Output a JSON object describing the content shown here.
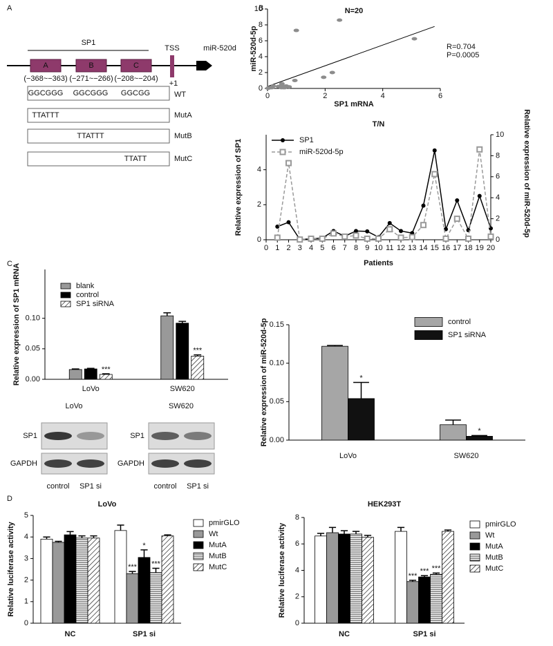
{
  "panel_labels": [
    "A",
    "B",
    "C",
    "D"
  ],
  "diagram": {
    "bracket_label": "SP1",
    "sites": [
      {
        "name": "A",
        "range": "(−368~−363)"
      },
      {
        "name": "B",
        "range": "(−271~−266)"
      },
      {
        "name": "C",
        "range": "(−208~−204)"
      }
    ],
    "tss": "TSS",
    "plus_one": "+1",
    "gene": "miR-520d",
    "constructs": [
      {
        "name": "WT",
        "sequences": [
          "GGCGGG",
          "GGCGGG",
          "GGCGG"
        ]
      },
      {
        "name": "MutA",
        "sequences": [
          "TTATTT",
          null,
          null
        ]
      },
      {
        "name": "MutB",
        "sequences": [
          null,
          "TTATTT",
          null
        ]
      },
      {
        "name": "MutC",
        "sequences": [
          null,
          null,
          "TTATT"
        ]
      }
    ]
  },
  "blots": [
    {
      "title": "LoVo",
      "rows": [
        "SP1",
        "GAPDH"
      ],
      "lanes": [
        "control",
        "SP1 si"
      ]
    },
    {
      "title": "SW620",
      "rows": [
        "SP1",
        "GAPDH"
      ],
      "lanes": [
        "control",
        "SP1 si"
      ]
    }
  ],
  "chart_data": [
    {
      "type": "scatter",
      "title": "N=20",
      "x_label": "SP1 mRNA",
      "y_label": "miR-520d-5p",
      "x": [
        0.75,
        1.0,
        0.02,
        0.05,
        0.1,
        0.5,
        0.2,
        0.5,
        0.48,
        0.15,
        0.95,
        0.5,
        0.38,
        1.95,
        5.1,
        0.6,
        2.25,
        0.55,
        2.5,
        0.65
      ],
      "values": [
        0.2,
        7.3,
        0.02,
        0.1,
        0.1,
        0.6,
        0.3,
        0.4,
        0.1,
        0.1,
        1.0,
        0.2,
        0.25,
        1.4,
        6.25,
        0.1,
        2.0,
        0.1,
        8.6,
        0.3
      ],
      "color": "#8c8c8c",
      "trendline": {
        "x": [
          0,
          5.8
        ],
        "y": [
          0.25,
          7.8
        ]
      },
      "annotations": [
        "R=0.704",
        "P=0.0005"
      ],
      "xlim": [
        0,
        6
      ],
      "xticks": [
        0,
        2,
        4,
        6
      ],
      "ylim": [
        0,
        10
      ],
      "yticks": [
        0,
        2,
        4,
        6,
        8,
        10
      ]
    },
    {
      "type": "line",
      "title": "T/N",
      "x_label": "Patients",
      "y_label": "Relative expression of SP1",
      "y2_label": "Relative expression of miR-520d-5p",
      "x": [
        1,
        2,
        3,
        4,
        5,
        6,
        7,
        8,
        9,
        10,
        11,
        12,
        13,
        14,
        15,
        16,
        17,
        18,
        19,
        20
      ],
      "series": [
        {
          "name": "SP1",
          "color": "#000000",
          "marker": "circle",
          "dashed": false,
          "values": [
            0.75,
            1.0,
            0.02,
            0.05,
            0.1,
            0.5,
            0.2,
            0.5,
            0.48,
            0.15,
            0.95,
            0.5,
            0.38,
            1.95,
            5.1,
            0.6,
            2.25,
            0.55,
            2.5,
            0.65
          ]
        },
        {
          "name": "miR-520d-5p",
          "color": "#999999",
          "marker": "square",
          "dashed": true,
          "axis": "y2",
          "values": [
            0.2,
            7.3,
            0.02,
            0.1,
            0.1,
            0.6,
            0.3,
            0.4,
            0.1,
            0.1,
            1.0,
            0.2,
            0.25,
            1.4,
            6.25,
            0.1,
            2.0,
            0.1,
            8.6,
            0.3
          ]
        }
      ],
      "legend": "upper-left",
      "xlim": [
        0,
        20
      ],
      "xticks": [
        0,
        1,
        2,
        3,
        4,
        5,
        6,
        7,
        8,
        9,
        10,
        11,
        12,
        13,
        14,
        15,
        16,
        17,
        18,
        19,
        20
      ],
      "ylim": [
        0,
        6
      ],
      "yticks": [
        0,
        2,
        4
      ],
      "y2lim": [
        0,
        10
      ],
      "y2ticks": [
        0,
        2,
        4,
        6,
        8,
        10
      ]
    },
    {
      "type": "bar",
      "y_label": "Relative expression of SP1 mRNA",
      "categories": [
        "LoVo",
        "SW620"
      ],
      "series": [
        {
          "name": "blank",
          "color": "#999999",
          "values": [
            0.016,
            0.104
          ],
          "errors": [
            0.001,
            0.005
          ]
        },
        {
          "name": "control",
          "color": "#000000",
          "values": [
            0.017,
            0.092
          ],
          "errors": [
            0.001,
            0.003
          ]
        },
        {
          "name": "SP1 siRNA",
          "color": "#ffffff",
          "pattern": "hatch",
          "values": [
            0.008,
            0.038
          ],
          "errors": [
            0.001,
            0.002
          ],
          "markers": [
            "***",
            "***"
          ]
        }
      ],
      "legend": "upper-left",
      "ylim": [
        0,
        0.18
      ],
      "yticks": [
        {
          "value": 0,
          "label": "0.00"
        },
        0.05,
        {
          "value": 0.1,
          "label": "0.10"
        }
      ]
    },
    {
      "type": "bar",
      "y_label": "Relative expression of miR-520d-5p",
      "categories": [
        "LoVo",
        "SW620"
      ],
      "series": [
        {
          "name": "control",
          "color": "#a6a6a6",
          "values": [
            0.122,
            0.02
          ],
          "errors": [
            0.001,
            0.006
          ]
        },
        {
          "name": "SP1 siRNA",
          "color": "#111111",
          "values": [
            0.054,
            0.005
          ],
          "errors": [
            0.021,
            0.001
          ],
          "markers": [
            "*",
            "*"
          ]
        }
      ],
      "legend": "upper-right",
      "ylim": [
        0,
        0.15
      ],
      "yticks": [
        {
          "value": 0,
          "label": "0.00"
        },
        0.05,
        {
          "value": 0.1,
          "label": "0.10"
        },
        0.15
      ]
    },
    {
      "type": "bar",
      "title": "LoVo",
      "y_label": "Relative luciferase activity",
      "categories": [
        "NC",
        "SP1 si"
      ],
      "series": [
        {
          "name": "pmirGLO",
          "color": "#ffffff",
          "values": [
            3.9,
            4.3
          ],
          "errors": [
            0.1,
            0.25
          ]
        },
        {
          "name": "Wt",
          "color": "#999999",
          "values": [
            3.75,
            2.3
          ],
          "errors": [
            0.05,
            0.1
          ],
          "markers": [
            null,
            "***"
          ]
        },
        {
          "name": "MutA",
          "color": "#000000",
          "values": [
            4.1,
            3.05
          ],
          "errors": [
            0.15,
            0.35
          ],
          "markers": [
            null,
            "*"
          ]
        },
        {
          "name": "MutB",
          "color": "#ffffff",
          "pattern": "hlines",
          "values": [
            3.95,
            2.35
          ],
          "errors": [
            0.1,
            0.2
          ],
          "markers": [
            null,
            "***"
          ]
        },
        {
          "name": "MutC",
          "color": "#ffffff",
          "pattern": "hatch",
          "values": [
            3.95,
            4.05
          ],
          "errors": [
            0.1,
            0.05
          ]
        }
      ],
      "legend": "right",
      "ylim": [
        0,
        5
      ],
      "yticks": [
        0,
        1,
        2,
        3,
        4,
        5
      ]
    },
    {
      "type": "bar",
      "title": "HEK293T",
      "y_label": "Relative luciferase activity",
      "categories": [
        "NC",
        "SP1 si"
      ],
      "series": [
        {
          "name": "pmirGLO",
          "color": "#ffffff",
          "values": [
            6.6,
            6.95
          ],
          "errors": [
            0.2,
            0.3
          ]
        },
        {
          "name": "Wt",
          "color": "#999999",
          "values": [
            6.85,
            3.15
          ],
          "errors": [
            0.4,
            0.1
          ],
          "markers": [
            null,
            "***"
          ]
        },
        {
          "name": "MutA",
          "color": "#000000",
          "values": [
            6.75,
            3.5
          ],
          "errors": [
            0.25,
            0.1
          ],
          "markers": [
            null,
            "***"
          ]
        },
        {
          "name": "MutB",
          "color": "#ffffff",
          "pattern": "hlines",
          "values": [
            6.75,
            3.7
          ],
          "errors": [
            0.2,
            0.1
          ],
          "markers": [
            null,
            "***"
          ]
        },
        {
          "name": "MutC",
          "color": "#ffffff",
          "pattern": "hatch",
          "values": [
            6.5,
            6.95
          ],
          "errors": [
            0.15,
            0.1
          ]
        }
      ],
      "legend": "right",
      "ylim": [
        0,
        8
      ],
      "yticks": [
        0,
        2,
        4,
        6,
        8
      ]
    }
  ]
}
